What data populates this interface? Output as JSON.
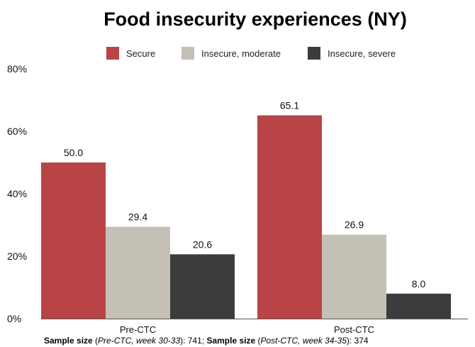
{
  "chart_data": {
    "type": "bar",
    "title": "Food insecurity experiences (NY)",
    "categories": [
      "Pre-CTC",
      "Post-CTC"
    ],
    "series": [
      {
        "name": "Secure",
        "values": [
          50.0,
          65.1
        ],
        "color": "#b94446"
      },
      {
        "name": "Insecure, moderate",
        "values": [
          29.4,
          26.9
        ],
        "color": "#c4c0b6"
      },
      {
        "name": "Insecure, severe",
        "values": [
          20.6,
          8.0
        ],
        "color": "#3c3c3c"
      }
    ],
    "data_labels": [
      [
        "50.0",
        "65.1"
      ],
      [
        "29.4",
        "26.9"
      ],
      [
        "20.6",
        "8.0"
      ]
    ],
    "yticks": [
      "0%",
      "20%",
      "40%",
      "60%",
      "80%"
    ],
    "ylim": [
      0,
      80
    ],
    "xlabel": "",
    "ylabel": "",
    "grid": false,
    "legend_position": "top"
  },
  "footnote": {
    "label1": "Sample size",
    "open1": " (",
    "italic1": "Pre-CTC, week 30-33",
    "close1": "): 741; ",
    "label2": "Sample size",
    "open2": " (",
    "italic2": "Post-CTC, week 34-35",
    "close2": "): 374"
  }
}
